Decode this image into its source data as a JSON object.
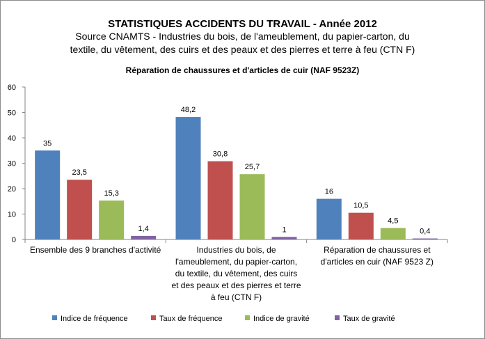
{
  "chart_data": {
    "type": "bar",
    "title": "STATISTIQUES ACCIDENTS DU TRAVAIL - Année 2012",
    "subtitle_lines": [
      "Source CNAMTS -   Industries du bois, de l'ameublement, du papier-carton, du",
      "textile, du vêtement, des cuirs et des peaux et des pierres et terre à feu (CTN  F)",
      "Réparation de chaussures et d'articles de cuir (NAF 9523Z)"
    ],
    "categories": [
      "Ensemble des 9 branches d'activité",
      "Industries du bois, de l'ameublement, du papier-carton, du textile, du vêtement, des cuirs et des peaux et des pierres et terre à feu (CTN F)",
      "Réparation de chaussures et d'articles en cuir (NAF 9523 Z)"
    ],
    "category_lines": [
      [
        "Ensemble des 9 branches d'activité"
      ],
      [
        "Industries du bois, de",
        "l'ameublement, du papier-carton,",
        "du textile, du vêtement, des cuirs",
        "et des peaux et des pierres et terre",
        "à feu (CTN F)"
      ],
      [
        "Réparation de chaussures et",
        "d'articles en cuir (NAF 9523 Z)"
      ]
    ],
    "series": [
      {
        "name": "Indice de fréquence",
        "color": "#4f81bd",
        "values": [
          35,
          48.2,
          16
        ],
        "labels": [
          "35",
          "48,2",
          "16"
        ]
      },
      {
        "name": "Taux de fréquence",
        "color": "#c0504d",
        "values": [
          23.5,
          30.8,
          10.5
        ],
        "labels": [
          "23,5",
          "30,8",
          "10,5"
        ]
      },
      {
        "name": "Indice de gravité",
        "color": "#9bbb59",
        "values": [
          15.3,
          25.7,
          4.5
        ],
        "labels": [
          "15,3",
          "25,7",
          "4,5"
        ]
      },
      {
        "name": "Taux de gravité",
        "color": "#8064a2",
        "values": [
          1.4,
          1,
          0.4
        ],
        "labels": [
          "1,4",
          "1",
          "0,4"
        ]
      }
    ],
    "ylim": [
      0,
      60
    ],
    "yticks": [
      0,
      10,
      20,
      30,
      40,
      50,
      60
    ],
    "grid": false,
    "legend_position": "bottom"
  }
}
